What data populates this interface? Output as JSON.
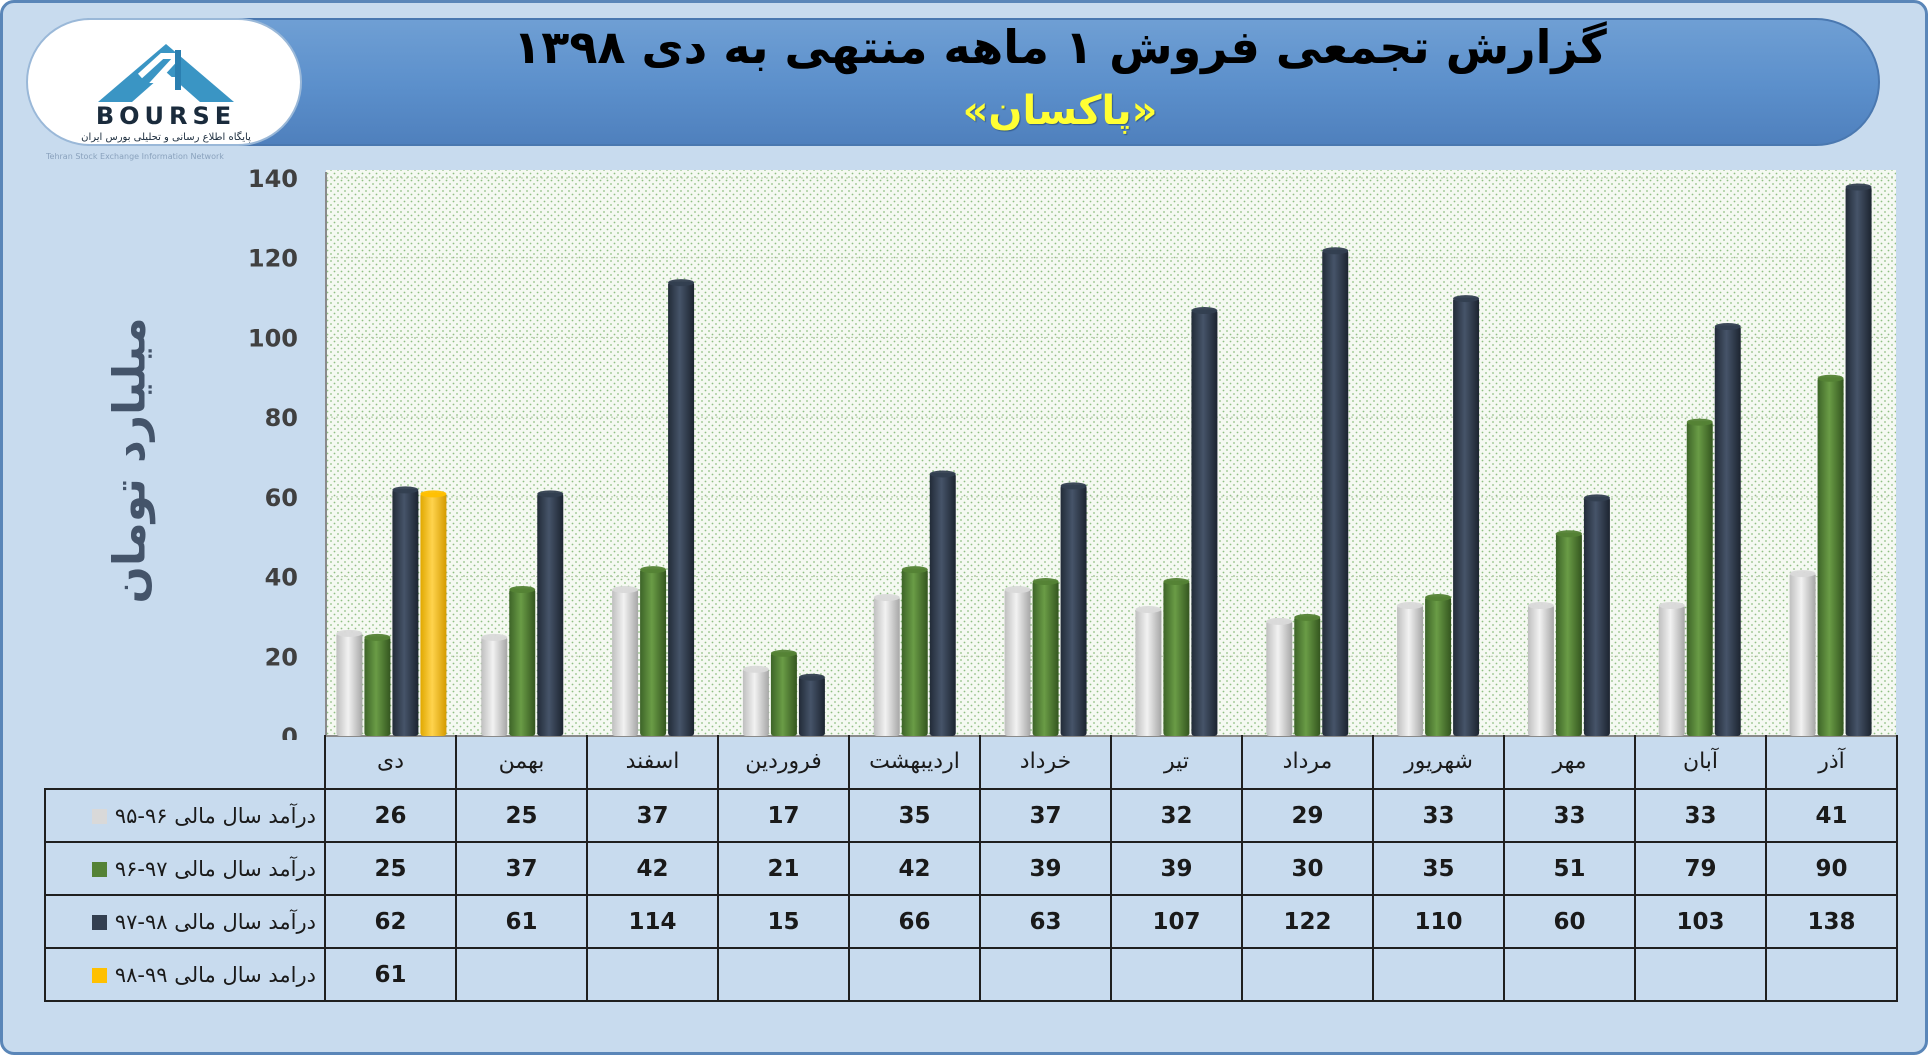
{
  "header": {
    "title": "گزارش تجمعی فروش ۱ ماهه منتهی به دی ۱۳۹۸",
    "subtitle": "«پاکسان»"
  },
  "logo": {
    "wordmark": "BOURSE",
    "tagline": "پایگاه اطلاع رسانی و تحلیلی بورس ایران",
    "caption": "Tehran Stock Exchange Information Network"
  },
  "chart_data": {
    "type": "bar",
    "title": "گزارش تجمعی فروش ۱ ماهه منتهی به دی ۱۳۹۸",
    "subtitle": "«پاکسان»",
    "ylabel": "میلیارد تومان",
    "xlabel": "",
    "ylim": [
      0,
      140
    ],
    "yticks": [
      0,
      20,
      40,
      60,
      80,
      100,
      120,
      140
    ],
    "categories": [
      "دی",
      "بهمن",
      "اسفند",
      "فروردین",
      "اردیبهشت",
      "خرداد",
      "تیر",
      "مرداد",
      "شهریور",
      "مهر",
      "آبان",
      "آذر"
    ],
    "series": [
      {
        "name": "درآمد سال مالی ۹۶-۹۵",
        "color": "#d9d9d9",
        "values": [
          26,
          25,
          37,
          17,
          35,
          37,
          32,
          29,
          33,
          33,
          33,
          41
        ]
      },
      {
        "name": "درآمد سال مالی ۹۷-۹۶",
        "color": "#548235",
        "values": [
          25,
          37,
          42,
          21,
          42,
          39,
          39,
          30,
          35,
          51,
          79,
          90
        ]
      },
      {
        "name": "درآمد سال مالی ۹۸-۹۷",
        "color": "#333f50",
        "values": [
          62,
          61,
          114,
          15,
          66,
          63,
          107,
          122,
          110,
          60,
          103,
          138
        ]
      },
      {
        "name": "درامد سال مالی ۹۹-۹۸",
        "color": "#ffc000",
        "values": [
          61,
          null,
          null,
          null,
          null,
          null,
          null,
          null,
          null,
          null,
          null,
          null
        ]
      }
    ],
    "grid": true,
    "legend": "table-left",
    "data_table": true
  }
}
